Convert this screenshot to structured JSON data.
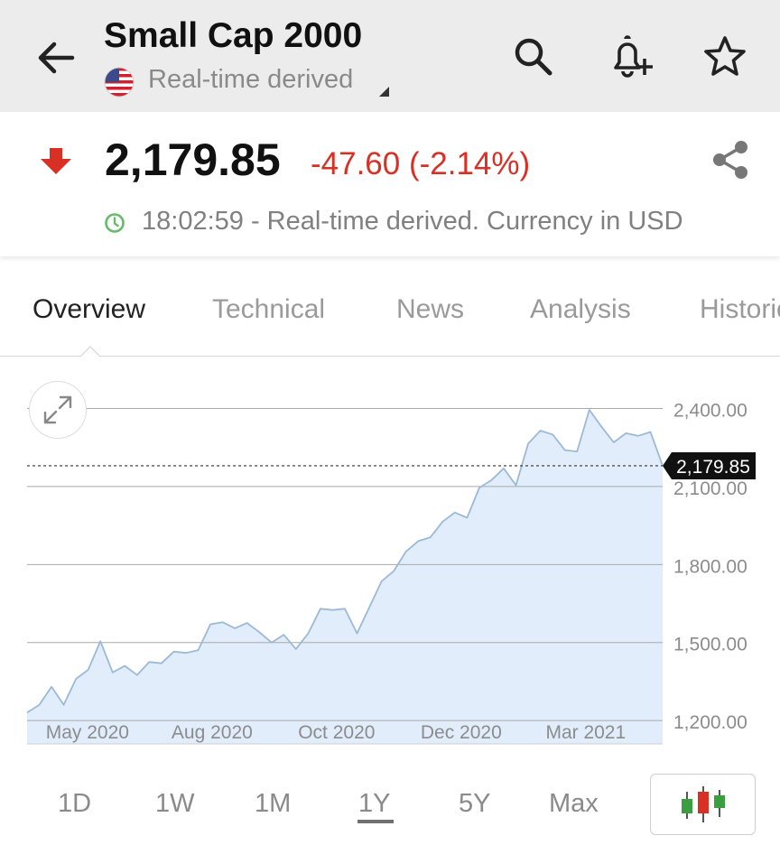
{
  "header": {
    "title": "Small Cap 2000",
    "subtitle": "Real-time derived",
    "flag_icon": "us-flag-icon",
    "icons": [
      "back-arrow-icon",
      "search-icon",
      "add-alert-bell-icon",
      "star-icon"
    ]
  },
  "quote": {
    "price": "2,179.85",
    "change": "-47.60 (-2.14%)",
    "time_text": "18:02:59 - Real-time derived. Currency in USD",
    "down_color": "#d93025",
    "clock_color": "#66bb6a"
  },
  "tabs": [
    {
      "label": "Overview",
      "active": true
    },
    {
      "label": "Technical",
      "active": false
    },
    {
      "label": "News",
      "active": false
    },
    {
      "label": "Analysis",
      "active": false
    },
    {
      "label": "Historical",
      "active": false
    }
  ],
  "chart_data": {
    "type": "area",
    "x_ticks": [
      "May 2020",
      "Aug 2020",
      "Oct 2020",
      "Dec 2020",
      "Mar 2021"
    ],
    "y_ticks": [
      "2,400.00",
      "2,100.00",
      "1,800.00",
      "1,500.00",
      "1,200.00"
    ],
    "ylim": [
      1110,
      2520
    ],
    "last_value_label": "2,179.85",
    "last_value": 2179.85,
    "series": [
      {
        "values": [
          1230,
          1260,
          1330,
          1260,
          1360,
          1395,
          1505,
          1385,
          1410,
          1375,
          1425,
          1420,
          1465,
          1460,
          1470,
          1570,
          1578,
          1555,
          1575,
          1540,
          1500,
          1530,
          1475,
          1535,
          1630,
          1625,
          1630,
          1535,
          1635,
          1735,
          1775,
          1850,
          1890,
          1905,
          1965,
          2000,
          1980,
          2095,
          2125,
          2170,
          2105,
          2265,
          2315,
          2300,
          2240,
          2235,
          2395,
          2330,
          2270,
          2305,
          2295,
          2310,
          2180
        ]
      }
    ],
    "fill_color": "#e1edfb",
    "line_color": "#9cb9d6"
  },
  "ranges": [
    {
      "label": "1D",
      "active": false
    },
    {
      "label": "1W",
      "active": false
    },
    {
      "label": "1M",
      "active": false
    },
    {
      "label": "1Y",
      "active": true
    },
    {
      "label": "5Y",
      "active": false
    },
    {
      "label": "Max",
      "active": false
    }
  ]
}
